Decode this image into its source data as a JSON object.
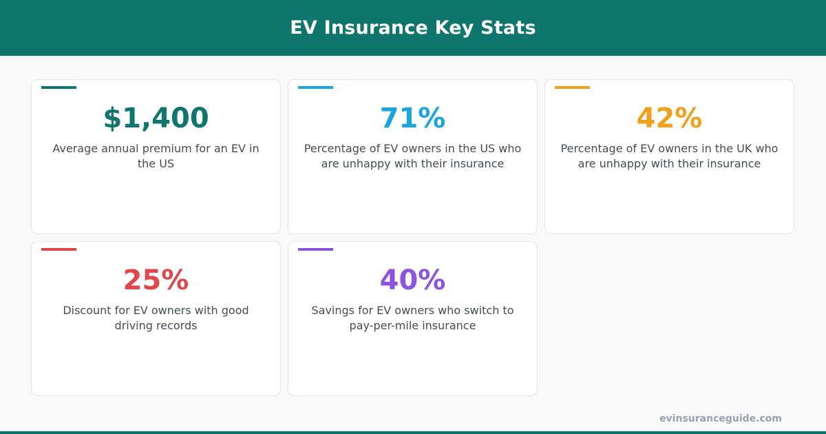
{
  "header": {
    "title": "EV Insurance Key Stats",
    "background": "#0f766e"
  },
  "cards": [
    {
      "value": "$1,400",
      "description": "Average annual premium for an EV in the US",
      "color": "#0f766e"
    },
    {
      "value": "71%",
      "description": "Percentage of EV owners in the US who are unhappy with their insurance",
      "color": "#1aa5de"
    },
    {
      "value": "42%",
      "description": "Percentage of EV owners in the UK who are unhappy with their insurance",
      "color": "#f0a01a"
    },
    {
      "value": "25%",
      "description": "Discount for EV owners with good driving records",
      "color": "#e0464a"
    },
    {
      "value": "40%",
      "description": "Savings for EV owners who switch to pay-per-mile insurance",
      "color": "#8b55e0"
    }
  ],
  "footer": {
    "url": "evinsuranceguide.com"
  }
}
